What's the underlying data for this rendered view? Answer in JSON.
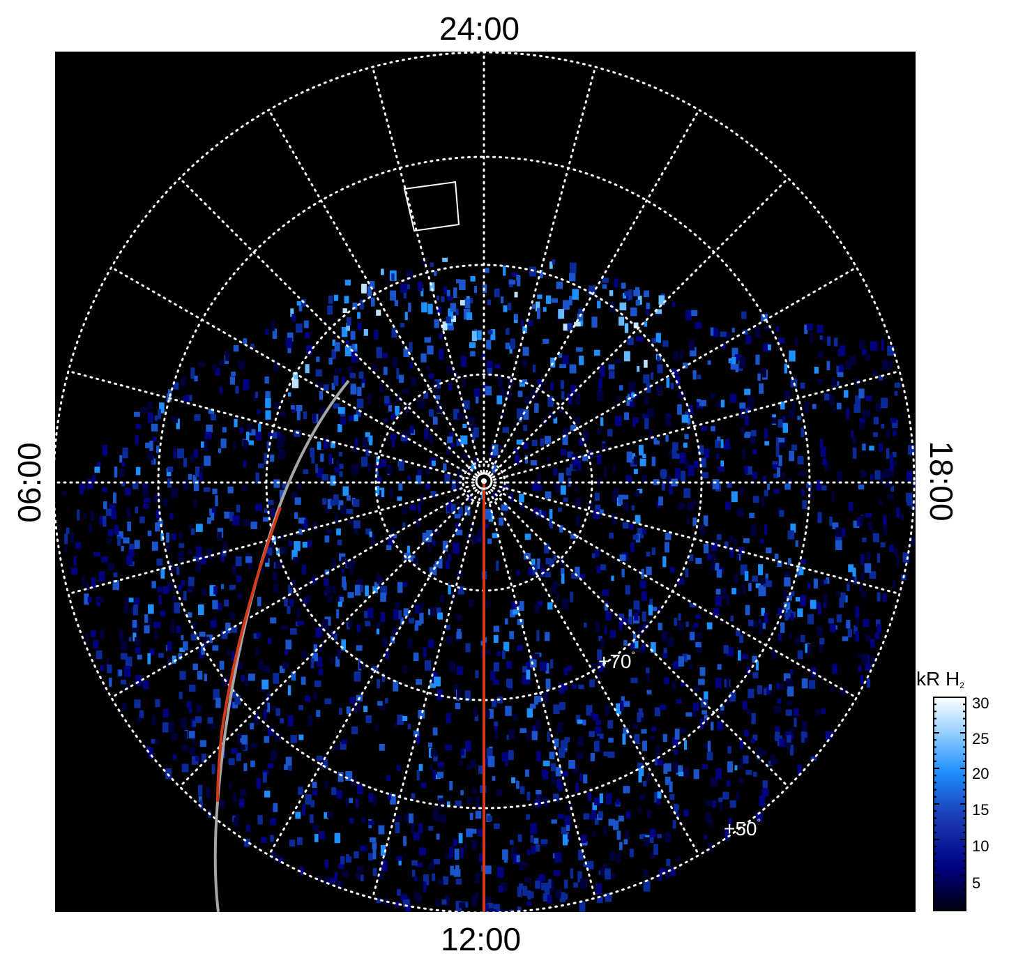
{
  "axis_labels": {
    "top": "24:00",
    "bottom": "12:00",
    "left": "06:00",
    "right": "18:00"
  },
  "latitude_labels": {
    "lat70": "+70",
    "lat50": "+50",
    "degree": "°"
  },
  "colorbar": {
    "title_main": "kR H",
    "title_sub": "2",
    "ticks": [
      "30",
      "25",
      "20",
      "15",
      "10",
      "5"
    ],
    "range": [
      0,
      30
    ],
    "colormap": [
      "#000010",
      "#000080",
      "#1a3fb8",
      "#1e8fff",
      "#9fd4ff",
      "#ffffff"
    ]
  },
  "colors": {
    "background": "#000000",
    "grid": "#ffffff",
    "track_gray": "#a6a6a6",
    "track_red": "#d43a1a"
  }
}
